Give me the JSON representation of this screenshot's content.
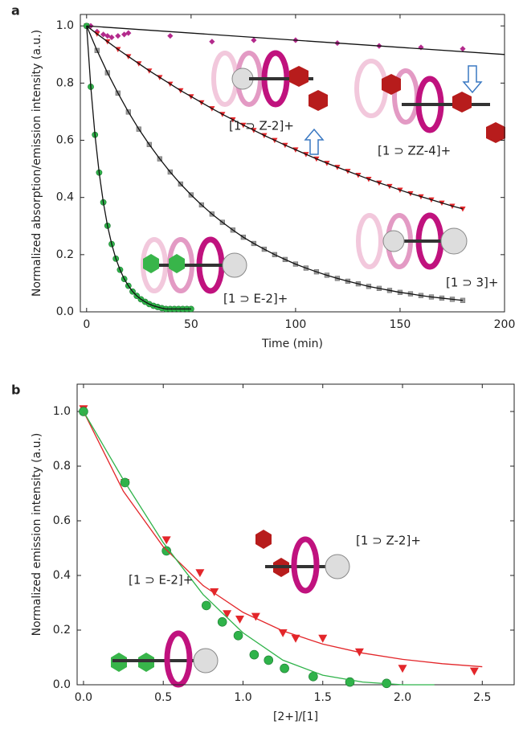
{
  "chart_data": [
    {
      "type": "scatter",
      "label": "a",
      "xlabel": "Time (min)",
      "ylabel": "Normalized absorption/emission intensity (a.u.)",
      "xlim": [
        -3,
        200
      ],
      "ylim": [
        0,
        1.04
      ],
      "xticks": [
        0,
        50,
        100,
        150,
        200
      ],
      "yticks": [
        {
          "value": 0,
          "label": "0.0"
        },
        {
          "value": 0.2,
          "label": "0.2"
        },
        {
          "value": 0.4,
          "label": "0.4"
        },
        {
          "value": 0.6,
          "label": "0.6"
        },
        {
          "value": 0.8,
          "label": "0.8"
        },
        {
          "value": 1,
          "label": "1.0"
        }
      ],
      "series": [
        {
          "name": "[1 ⊃ ZZ-4]+",
          "color": "#b32a8c",
          "marker": "diamond",
          "x": [
            0,
            2,
            5,
            8,
            10,
            12,
            15,
            18,
            20,
            40,
            60,
            80,
            100,
            120,
            140,
            160,
            180
          ],
          "values": [
            1.0,
            1.0,
            0.98,
            0.97,
            0.965,
            0.96,
            0.965,
            0.97,
            0.975,
            0.965,
            0.945,
            0.95,
            0.95,
            0.94,
            0.93,
            0.925,
            0.92
          ],
          "fit_x": [
            0,
            200
          ],
          "fit_values": [
            1.0,
            0.9
          ],
          "fit_color": "#111"
        },
        {
          "name": "[1 ⊃ Z-2]+",
          "color": "#e3262a",
          "marker": "triangle-down",
          "line_color": "#111",
          "x": [
            0,
            5,
            10,
            15,
            20,
            25,
            30,
            35,
            40,
            45,
            50,
            55,
            60,
            65,
            70,
            75,
            80,
            85,
            90,
            95,
            100,
            105,
            110,
            115,
            120,
            125,
            130,
            135,
            140,
            145,
            150,
            155,
            160,
            165,
            170,
            175,
            180
          ],
          "values": [
            1.0,
            0.972,
            0.945,
            0.918,
            0.893,
            0.868,
            0.843,
            0.82,
            0.797,
            0.774,
            0.753,
            0.732,
            0.711,
            0.691,
            0.672,
            0.653,
            0.635,
            0.617,
            0.6,
            0.583,
            0.567,
            0.551,
            0.535,
            0.52,
            0.506,
            0.492,
            0.478,
            0.464,
            0.451,
            0.439,
            0.426,
            0.414,
            0.403,
            0.392,
            0.381,
            0.37,
            0.36
          ]
        },
        {
          "name": "[1 ⊃ 3]+",
          "color": "#9a9a9a",
          "marker": "square",
          "line_color": "#111",
          "x": [
            0,
            5,
            10,
            15,
            20,
            25,
            30,
            35,
            40,
            45,
            50,
            55,
            60,
            65,
            70,
            75,
            80,
            85,
            90,
            95,
            100,
            105,
            110,
            115,
            120,
            125,
            130,
            135,
            140,
            145,
            150,
            155,
            160,
            165,
            170,
            175,
            180
          ],
          "values": [
            1.0,
            0.914,
            0.836,
            0.765,
            0.699,
            0.639,
            0.585,
            0.535,
            0.489,
            0.447,
            0.409,
            0.374,
            0.342,
            0.313,
            0.286,
            0.261,
            0.239,
            0.219,
            0.2,
            0.183,
            0.167,
            0.153,
            0.14,
            0.128,
            0.117,
            0.107,
            0.098,
            0.089,
            0.082,
            0.075,
            0.068,
            0.063,
            0.057,
            0.052,
            0.048,
            0.044,
            0.04
          ]
        },
        {
          "name": "[1 ⊃ E-2]+",
          "color": "#2fb34a",
          "marker": "circle",
          "line_color": "#111",
          "x": [
            0,
            2,
            4,
            6,
            8,
            10,
            12,
            14,
            16,
            18,
            20,
            22,
            24,
            26,
            28,
            30,
            32,
            34,
            36,
            38,
            40,
            42,
            44,
            46,
            48,
            50
          ],
          "values": [
            1.0,
            0.787,
            0.619,
            0.487,
            0.383,
            0.301,
            0.237,
            0.186,
            0.147,
            0.115,
            0.091,
            0.071,
            0.056,
            0.044,
            0.035,
            0.027,
            0.021,
            0.017,
            0.013,
            0.01,
            0.01,
            0.01,
            0.01,
            0.01,
            0.01,
            0.01
          ]
        }
      ]
    },
    {
      "type": "scatter",
      "label": "b",
      "xlabel": "[2+]/[1]",
      "ylabel": "Normalized emission intensity (a.u.)",
      "xlim": [
        -0.04,
        2.7
      ],
      "ylim": [
        0,
        1.1
      ],
      "xticks": [
        {
          "value": 0,
          "label": "0.0"
        },
        {
          "value": 0.5,
          "label": "0.5"
        },
        {
          "value": 1,
          "label": "1.0"
        },
        {
          "value": 1.5,
          "label": "1.5"
        },
        {
          "value": 2,
          "label": "2.0"
        },
        {
          "value": 2.5,
          "label": "2.5"
        }
      ],
      "yticks": [
        {
          "value": 0,
          "label": "0.0"
        },
        {
          "value": 0.2,
          "label": "0.2"
        },
        {
          "value": 0.4,
          "label": "0.4"
        },
        {
          "value": 0.6,
          "label": "0.6"
        },
        {
          "value": 0.8,
          "label": "0.8"
        },
        {
          "value": 1,
          "label": "1.0"
        }
      ],
      "series": [
        {
          "name": "[1 ⊃ Z-2]+",
          "color": "#e3262a",
          "marker": "triangle-down",
          "x": [
            0,
            0.26,
            0.52,
            0.73,
            0.82,
            0.9,
            0.98,
            1.08,
            1.25,
            1.33,
            1.5,
            1.73,
            2.0,
            2.45
          ],
          "values": [
            1.01,
            0.74,
            0.53,
            0.41,
            0.34,
            0.26,
            0.24,
            0.25,
            0.19,
            0.17,
            0.17,
            0.12,
            0.06,
            0.05
          ],
          "fit_x": [
            0,
            0.25,
            0.5,
            0.75,
            1,
            1.25,
            1.5,
            1.75,
            2,
            2.25,
            2.5
          ],
          "fit_values": [
            1.0,
            0.708,
            0.505,
            0.363,
            0.265,
            0.197,
            0.149,
            0.116,
            0.093,
            0.077,
            0.066
          ],
          "fit_color": "#e3262a"
        },
        {
          "name": "[1 ⊃ E-2]+",
          "color": "#2fb34a",
          "marker": "circle",
          "x": [
            0,
            0.26,
            0.52,
            0.77,
            0.87,
            0.97,
            1.07,
            1.16,
            1.26,
            1.44,
            1.67,
            1.9
          ],
          "values": [
            1.0,
            0.74,
            0.49,
            0.29,
            0.23,
            0.18,
            0.11,
            0.09,
            0.06,
            0.03,
            0.01,
            0.005
          ],
          "fit_x": [
            0,
            0.25,
            0.5,
            0.75,
            1,
            1.25,
            1.5,
            1.75,
            2,
            2.2
          ],
          "fit_values": [
            1.0,
            0.75,
            0.52,
            0.33,
            0.19,
            0.09,
            0.035,
            0.01,
            0,
            0
          ],
          "fit_color": "#2fb34a"
        }
      ]
    }
  ]
}
